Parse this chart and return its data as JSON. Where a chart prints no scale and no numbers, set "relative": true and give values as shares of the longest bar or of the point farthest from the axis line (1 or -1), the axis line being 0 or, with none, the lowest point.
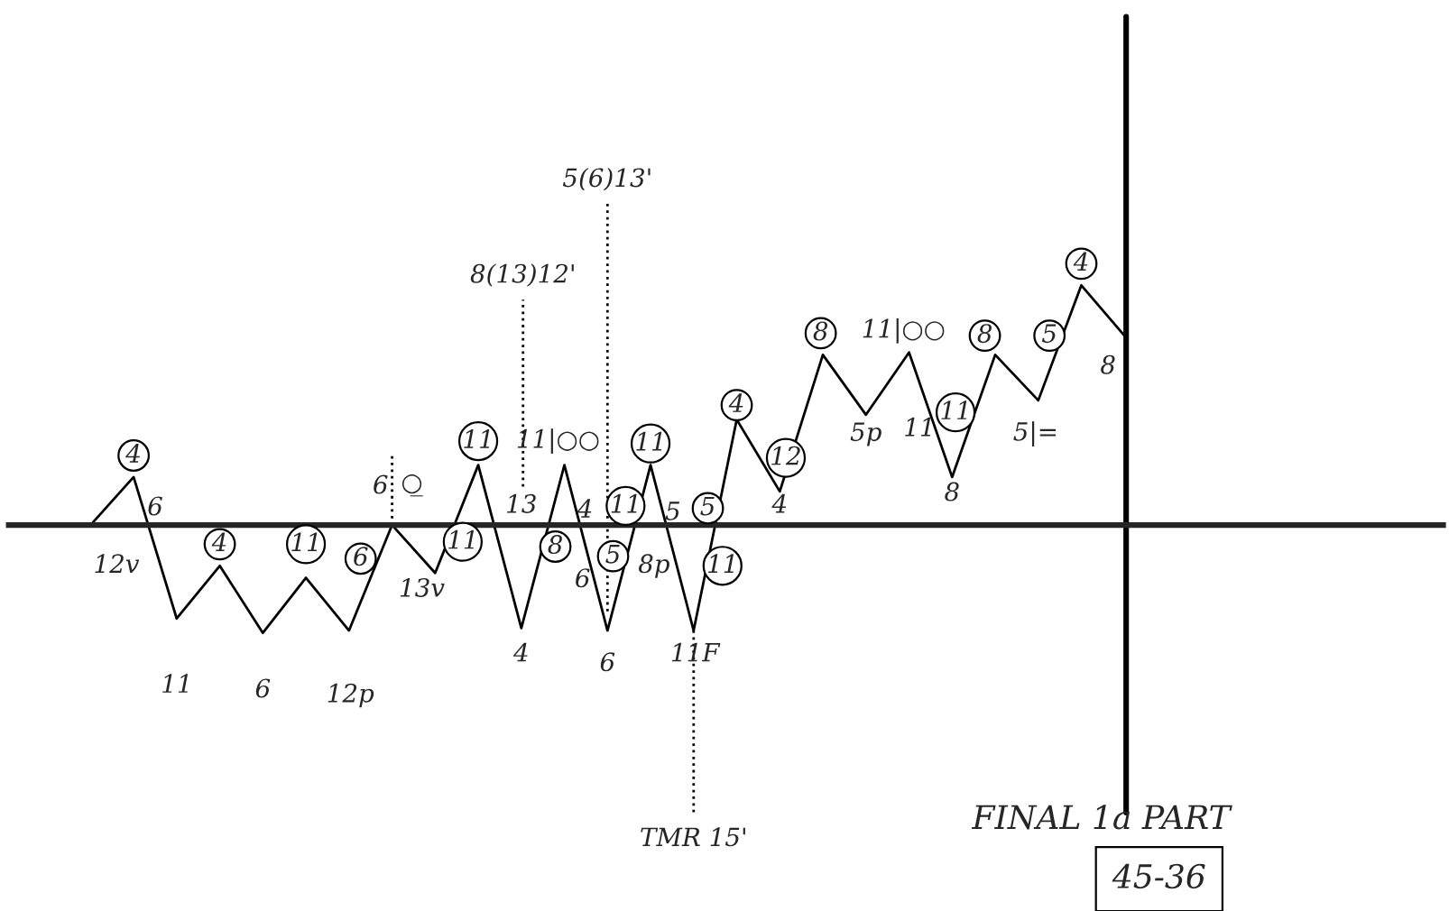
{
  "chart_data": {
    "type": "line",
    "relative": true,
    "title": "FINAL 1a PART",
    "categories": [
      null,
      null,
      null,
      null,
      null,
      null,
      null,
      null,
      null,
      null,
      null,
      null,
      null,
      null,
      null,
      null,
      null,
      null,
      null,
      null,
      null,
      null,
      null,
      null,
      null
    ],
    "series": [
      {
        "color": "#000000",
        "values": [
          0,
          0.2,
          -0.39,
          -0.17,
          -0.45,
          -0.22,
          -0.44,
          0,
          -0.2,
          0.25,
          -0.43,
          0.25,
          -0.44,
          0.25,
          -0.44,
          0.44,
          0.14,
          0.71,
          0.46,
          0.72,
          0.2,
          0.71,
          0.52,
          1,
          0.79
        ]
      }
    ],
    "marker": "none",
    "line_style": "solid",
    "grid": false,
    "annotations": [
      "4",
      "6",
      "12v",
      "11",
      "4",
      "6",
      "11",
      "12p",
      "6",
      "6",
      "○̲",
      "13v",
      "11",
      "11",
      "13",
      "4",
      "8",
      "11|○○",
      "4",
      "6",
      "5",
      "6",
      "11",
      "11",
      "5",
      "8p",
      "11F",
      "5",
      "11",
      "4",
      "12",
      "4",
      "8",
      "5p",
      "11|○○",
      "11",
      "11",
      "8",
      "8",
      "5",
      "5|=",
      "4",
      "8",
      "8(13)12'",
      "5(6)13'",
      "TMR 15'",
      "45-36"
    ]
  }
}
